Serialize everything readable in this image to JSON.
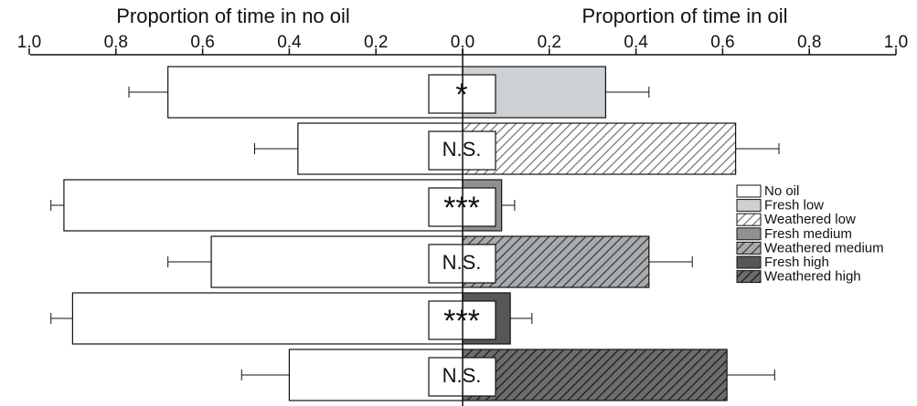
{
  "chart_data": {
    "type": "bar",
    "orientation": "horizontal-diverging",
    "left_axis": {
      "title": "Proportion of time in no oil",
      "ticks": [
        "1.0",
        "0.8",
        "0.6",
        "0.4",
        "0.2",
        "0.0"
      ],
      "range": [
        0,
        1.0
      ]
    },
    "right_axis": {
      "title": "Proportion of time in oil",
      "ticks": [
        "0.0",
        "0.2",
        "0.4",
        "0.6",
        "0.8",
        "1.0"
      ],
      "range": [
        0,
        1.0
      ]
    },
    "rows": [
      {
        "treatment": "Fresh low",
        "no_oil": 0.68,
        "no_oil_err": 0.09,
        "oil": 0.33,
        "oil_err": 0.1,
        "significance": "*"
      },
      {
        "treatment": "Weathered low",
        "no_oil": 0.38,
        "no_oil_err": 0.1,
        "oil": 0.63,
        "oil_err": 0.1,
        "significance": "N.S."
      },
      {
        "treatment": "Fresh medium",
        "no_oil": 0.92,
        "no_oil_err": 0.03,
        "oil": 0.09,
        "oil_err": 0.03,
        "significance": "***"
      },
      {
        "treatment": "Weathered medium",
        "no_oil": 0.58,
        "no_oil_err": 0.1,
        "oil": 0.43,
        "oil_err": 0.1,
        "significance": "N.S."
      },
      {
        "treatment": "Fresh high",
        "no_oil": 0.9,
        "no_oil_err": 0.05,
        "oil": 0.11,
        "oil_err": 0.05,
        "significance": "***"
      },
      {
        "treatment": "Weathered high",
        "no_oil": 0.4,
        "no_oil_err": 0.11,
        "oil": 0.61,
        "oil_err": 0.11,
        "significance": "N.S."
      }
    ],
    "legend": {
      "placement": "right",
      "entries": [
        {
          "label": "No oil",
          "fill": "#ffffff",
          "hatch": false
        },
        {
          "label": "Fresh low",
          "fill": "#cdd1d3",
          "hatch": false
        },
        {
          "label": "Weathered low",
          "fill": "#ffffff",
          "hatch": true,
          "hatch_color": "#777777"
        },
        {
          "label": "Fresh medium",
          "fill": "#8e9194",
          "hatch": false
        },
        {
          "label": "Weathered medium",
          "fill": "#a9acaf",
          "hatch": true,
          "hatch_color": "#444444"
        },
        {
          "label": "Fresh high",
          "fill": "#555759",
          "hatch": false
        },
        {
          "label": "Weathered high",
          "fill": "#6a6c6e",
          "hatch": true,
          "hatch_color": "#222222"
        }
      ]
    }
  }
}
